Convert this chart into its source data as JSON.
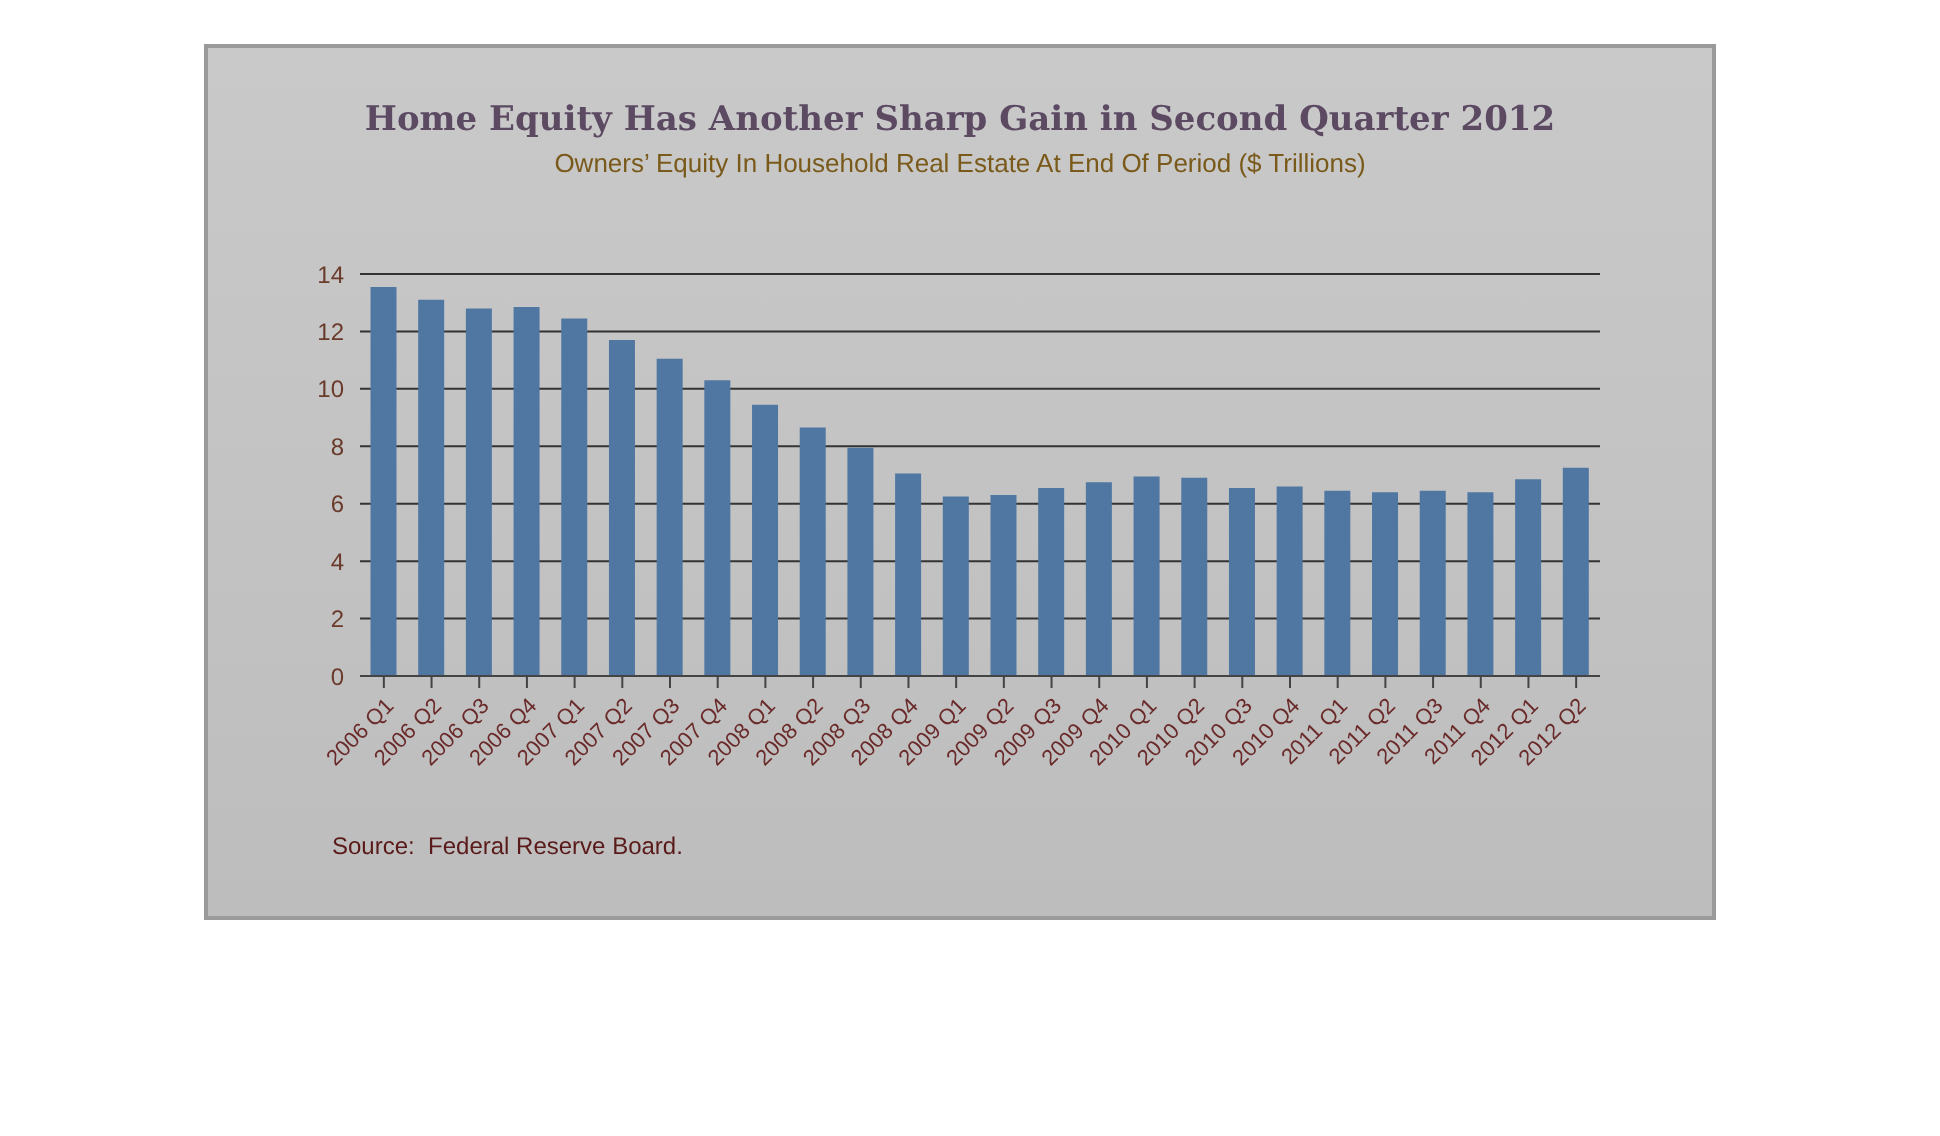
{
  "chart_data": {
    "type": "bar",
    "title": "Home Equity Has Another Sharp Gain in Second Quarter 2012",
    "subtitle": "Owners’ Equity In Household Real Estate At End Of Period ($ Trillions)",
    "categories": [
      "2006 Q1",
      "2006 Q2",
      "2006 Q3",
      "2006 Q4",
      "2007 Q1",
      "2007 Q2",
      "2007 Q3",
      "2007 Q4",
      "2008 Q1",
      "2008 Q2",
      "2008 Q3",
      "2008 Q4",
      "2009 Q1",
      "2009 Q2",
      "2009 Q3",
      "2009 Q4",
      "2010 Q1",
      "2010 Q2",
      "2010 Q3",
      "2010 Q4",
      "2011 Q1",
      "2011 Q2",
      "2011 Q3",
      "2011 Q4",
      "2012 Q1",
      "2012 Q2"
    ],
    "values": [
      13.55,
      13.1,
      12.8,
      12.85,
      12.45,
      11.7,
      11.05,
      10.3,
      9.45,
      8.65,
      7.95,
      7.05,
      6.25,
      6.3,
      6.55,
      6.75,
      6.95,
      6.9,
      6.55,
      6.6,
      6.45,
      6.4,
      6.45,
      6.4,
      6.85,
      7.25
    ],
    "color": "#4f77a2",
    "ylim": [
      0,
      14
    ],
    "yticks": [
      0,
      2,
      4,
      6,
      8,
      10,
      12,
      14
    ],
    "grid": "y",
    "legend": false,
    "annotations": [
      "Source:  Federal Reserve Board."
    ]
  }
}
